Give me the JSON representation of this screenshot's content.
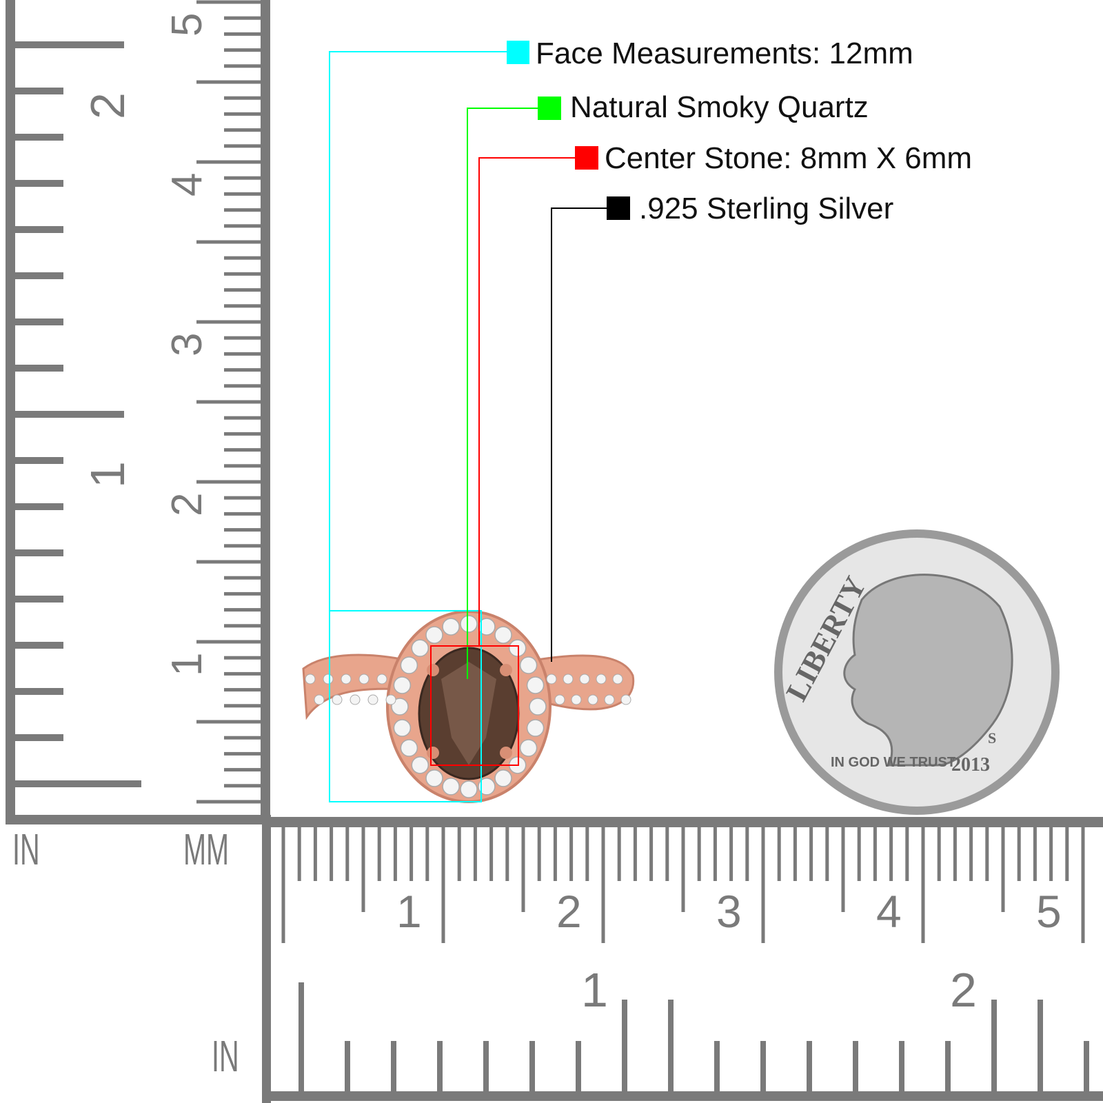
{
  "annotations": [
    {
      "label": "Face Measurements: 12mm",
      "color": "#00ffff"
    },
    {
      "label": "Natural Smoky Quartz",
      "color": "#00ff00"
    },
    {
      "label": "Center Stone: 8mm X 6mm",
      "color": "#ff0000"
    },
    {
      "label": ".925 Sterling Silver",
      "color": "#000000"
    }
  ],
  "rulers": {
    "left_inch_unit": "IN",
    "left_mm_unit": "MM",
    "bottom_inch_unit": "IN",
    "left_inch_labels": [
      "1",
      "2"
    ],
    "left_cm_labels": [
      "1",
      "2",
      "3",
      "4",
      "5"
    ],
    "bottom_cm_labels": [
      "1",
      "2",
      "3",
      "4",
      "5"
    ],
    "bottom_inch_labels": [
      "1",
      "2"
    ],
    "color": "#7a7a7a"
  },
  "coin": {
    "legend": "LIBERTY",
    "motto": "IN GOD WE TRUST",
    "year": "2013",
    "mint_mark": "S"
  },
  "ring": {
    "metal_color": "#e8a58c",
    "stone_color": "#5a3e30"
  }
}
